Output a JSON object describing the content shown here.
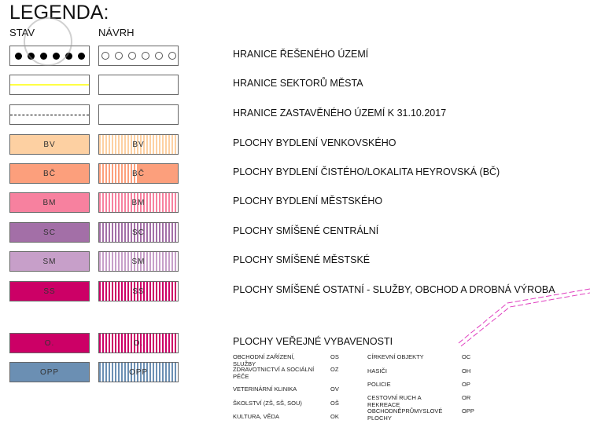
{
  "title": "LEGENDA:",
  "columns": {
    "stav": "STAV",
    "navrh": "NÁVRH"
  },
  "rows": [
    {
      "label": "HRANICE ŘEŠENÉHO ÚZEMÍ",
      "type": "dots"
    },
    {
      "label": "HRANICE SEKTORŮ MĚSTA",
      "type": "yellow-line",
      "color": "#ffff44"
    },
    {
      "label": "HRANICE ZASTAVĚNÉHO ÚZEMÍ   K 31.10.2017",
      "type": "dashdot"
    },
    {
      "label": "PLOCHY BYDLENÍ   VENKOVSKÉHO",
      "code": "BV",
      "color": "#fdd0a2"
    },
    {
      "label": "PLOCHY BYDLENÍ ČISTÉHO/LOKALITA HEYROVSKÁ (BČ)",
      "code": "BČ",
      "color": "#fc9f7c"
    },
    {
      "label": "PLOCHY BYDLENÍ   MĚSTSKÉHO",
      "code": "BM",
      "color": "#f7819f"
    },
    {
      "label": "PLOCHY SMÍŠENÉ CENTRÁLNÍ",
      "code": "SC",
      "color": "#a36fa7"
    },
    {
      "label": "PLOCHY SMÍŠENÉ MĚSTSKÉ",
      "code": "SM",
      "color": "#c79fc9"
    },
    {
      "label": "PLOCHY SMÍŠENÉ OSTATNÍ  - SLUŽBY, OBCHOD A DROBNÁ VÝROBA",
      "code": "SS",
      "color": "#cc0066"
    },
    {
      "label": "PLOCHY VEŘEJNÉ VYBAVENOSTI",
      "code": "O.",
      "color": "#cc0066"
    },
    {
      "label": "",
      "code": "OPP",
      "color": "#6b8fb3"
    }
  ],
  "amenities_left": [
    {
      "name": "OBCHODNÍ ZAŘÍZENÍ, SLUŽBY",
      "code": "OS"
    },
    {
      "name": "ZDRAVOTNICTVÍ A SOCIÁLNÍ PÉČE",
      "code": "OZ"
    },
    {
      "name": "VETERINÁRNÍ KLINIKA",
      "code": "OV"
    },
    {
      "name": "ŠKOLSTVÍ (ZŠ, SŠ, SOU)",
      "code": "OŠ"
    },
    {
      "name": "KULTURA, VĚDA",
      "code": "OK"
    }
  ],
  "amenities_right": [
    {
      "name": "CÍRKEVNÍ OBJEKTY",
      "code": "OC"
    },
    {
      "name": "HASIČI",
      "code": "OH"
    },
    {
      "name": "POLICIE",
      "code": "OP"
    },
    {
      "name": "CESTOVNÍ RUCH A REKREACE",
      "code": "OR"
    },
    {
      "name": "OBCHODNĚPRŮMYSLOVÉ PLOCHY",
      "code": "OPP"
    }
  ]
}
